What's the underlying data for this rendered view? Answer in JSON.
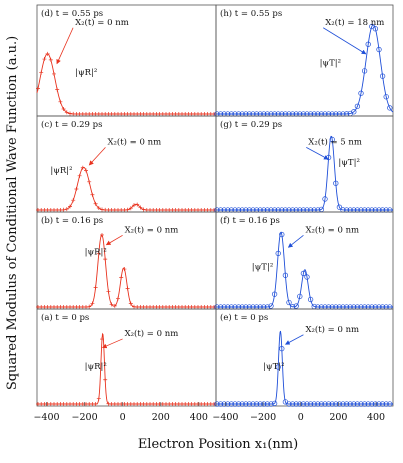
{
  "chart_data": {
    "type": "line",
    "ylabel": "Squared Modulus of Conditional Wave Function (a.u.)",
    "xlabel": "Electron Position x₁(nm)",
    "xticks": [
      -400,
      -200,
      0,
      200,
      400
    ],
    "xlim": [
      -450,
      490
    ],
    "colors": {
      "reflected": "#e8321e",
      "transmitted": "#1f4fd8",
      "arrow": "#e8321e",
      "arrow_blue": "#1f4fd8"
    },
    "panels": [
      {
        "column": "left",
        "row": 0,
        "label": "(d) t = 0.55 ps",
        "annotation": "X₂(t) = 0 nm",
        "psi_label": "|ψR|²",
        "annotation_target": [
          -345,
          0.52
        ],
        "annotation_pos": [
          -250,
          0.92
        ],
        "psi_pos": [
          -250,
          0.4
        ],
        "ylim": [
          0,
          1.0
        ],
        "marker": "plus",
        "series": [
          {
            "x0": -395,
            "sigma": 38,
            "amp": 0.62
          }
        ]
      },
      {
        "column": "left",
        "row": 1,
        "label": "(c) t = 0.29 ps",
        "annotation": "X₂(t) = 0 nm",
        "psi_label": "|ψR|²",
        "annotation_target": [
          -175,
          0.55
        ],
        "annotation_pos": [
          -80,
          0.8
        ],
        "psi_pos": [
          -380,
          0.45
        ],
        "ylim": [
          0,
          1.0
        ],
        "marker": "plus",
        "series": [
          {
            "x0": -205,
            "sigma": 32,
            "amp": 0.52
          },
          {
            "x0": 70,
            "sigma": 18,
            "amp": 0.07
          }
        ]
      },
      {
        "column": "left",
        "row": 2,
        "label": "(b) t = 0.16 ps",
        "annotation": "X₂(t) = 0 nm",
        "psi_label": "|ψR|²",
        "annotation_target": [
          -85,
          0.75
        ],
        "annotation_pos": [
          10,
          0.9
        ],
        "psi_pos": [
          -200,
          0.63
        ],
        "ylim": [
          0,
          1.0
        ],
        "marker": "plus",
        "series": [
          {
            "x0": -110,
            "sigma": 20,
            "amp": 0.87
          },
          {
            "x0": 5,
            "sigma": 17,
            "amp": 0.47
          }
        ]
      },
      {
        "column": "left",
        "row": 3,
        "label": "(a) t = 0 ps",
        "annotation": "X₂(t) = 0 nm",
        "psi_label": "|ψR|²",
        "annotation_target": [
          -105,
          0.68
        ],
        "annotation_pos": [
          10,
          0.82
        ],
        "psi_pos": [
          -200,
          0.42
        ],
        "ylim": [
          0,
          1.0
        ],
        "marker": "plus",
        "series": [
          {
            "x0": -105,
            "sigma": 9,
            "amp": 0.85
          }
        ]
      },
      {
        "column": "right",
        "row": 0,
        "label": "(h) t = 0.55 ps",
        "annotation": "X₂(t) = 18 nm",
        "psi_label": "|ψT|²",
        "annotation_target": [
          345,
          0.62
        ],
        "annotation_pos": [
          130,
          0.92
        ],
        "psi_pos": [
          100,
          0.5
        ],
        "ylim": [
          0,
          1.0
        ],
        "marker": "circle",
        "series": [
          {
            "x0": 385,
            "sigma": 38,
            "amp": 0.92
          }
        ]
      },
      {
        "column": "right",
        "row": 1,
        "label": "(g) t = 0.29 ps",
        "annotation": "X₂(t) = 5 nm",
        "psi_label": "|ψT|²",
        "annotation_target": [
          145,
          0.62
        ],
        "annotation_pos": [
          40,
          0.8
        ],
        "psi_pos": [
          200,
          0.55
        ],
        "ylim": [
          0,
          1.0
        ],
        "marker": "circle",
        "series": [
          {
            "x0": 162,
            "sigma": 17,
            "amp": 0.9
          }
        ]
      },
      {
        "column": "right",
        "row": 2,
        "label": "(f) t = 0.16 ps",
        "annotation": "X₂(t) = 0 nm",
        "psi_label": "|ψT|²",
        "annotation_target": [
          -65,
          0.72
        ],
        "annotation_pos": [
          25,
          0.9
        ],
        "psi_pos": [
          -260,
          0.45
        ],
        "ylim": [
          0,
          1.0
        ],
        "marker": "circle",
        "series": [
          {
            "x0": -105,
            "sigma": 18,
            "amp": 0.9
          },
          {
            "x0": 22,
            "sigma": 17,
            "amp": 0.45
          }
        ]
      },
      {
        "column": "right",
        "row": 3,
        "label": "(e) t = 0 ps",
        "annotation": "X₂(t) = 0 nm",
        "psi_label": "|ψT|²",
        "annotation_target": [
          -80,
          0.72
        ],
        "annotation_pos": [
          25,
          0.87
        ],
        "psi_pos": [
          -200,
          0.42
        ],
        "ylim": [
          0,
          1.0
        ],
        "marker": "circle",
        "series": [
          {
            "x0": -108,
            "sigma": 10,
            "amp": 0.88
          }
        ]
      }
    ]
  }
}
